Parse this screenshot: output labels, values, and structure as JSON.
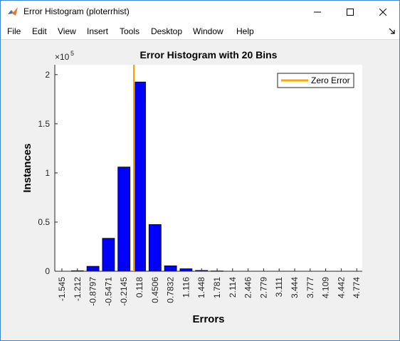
{
  "window": {
    "title": "Error Histogram (ploterrhist)",
    "accent_color": "#3f86c6"
  },
  "titlebar_buttons": [
    "minimize-icon",
    "maximize-icon",
    "close-icon"
  ],
  "menu": {
    "items": [
      "File",
      "Edit",
      "View",
      "Insert",
      "Tools",
      "Desktop",
      "Window",
      "Help"
    ]
  },
  "chart_data": {
    "type": "bar",
    "title": "Error Histogram with 20 Bins",
    "xlabel": "Errors",
    "ylabel": "Instances",
    "y_exponent_label": "×10",
    "y_exponent_power": "5",
    "y_scale": 100000,
    "ylim": [
      0,
      210000
    ],
    "yticks": [
      0,
      0.5,
      1,
      1.5,
      2
    ],
    "ytick_labels": [
      "0",
      "0.5",
      "1",
      "1.5",
      "2"
    ],
    "categories": [
      "-1.545",
      "-1.212",
      "-0.8797",
      "-0.5471",
      "-0.2145",
      "0.118",
      "0.4506",
      "0.7832",
      "1.116",
      "1.448",
      "1.781",
      "2.114",
      "2.446",
      "2.779",
      "3.111",
      "3.444",
      "3.777",
      "4.109",
      "4.442",
      "4.774"
    ],
    "values": [
      0,
      500,
      5000,
      33500,
      106000,
      192500,
      47500,
      5500,
      2500,
      800,
      300,
      0,
      0,
      0,
      0,
      0,
      0,
      0,
      0,
      0
    ],
    "bar_color": "#0000ff",
    "zero_error_x": 0,
    "zero_error_color": "#ffa500",
    "legend": {
      "label": "Zero Error",
      "position": "top-right"
    },
    "background": "#ffffff",
    "grid": false
  }
}
